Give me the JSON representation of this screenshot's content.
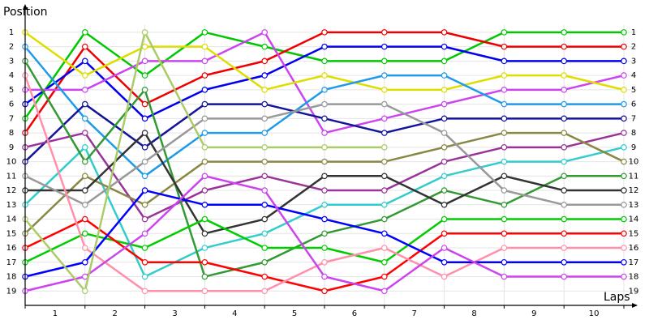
{
  "chart_data": {
    "type": "line",
    "y_label": "Position",
    "x_label": "Laps",
    "x": [
      0,
      1,
      2,
      3,
      4,
      5,
      6,
      7,
      8,
      9,
      10
    ],
    "xlim": [
      0,
      10
    ],
    "xticks": [
      {
        "value": 0.5,
        "label": "1"
      },
      {
        "value": 1.5,
        "label": "2"
      },
      {
        "value": 2.5,
        "label": "3"
      },
      {
        "value": 3.5,
        "label": "4"
      },
      {
        "value": 4.5,
        "label": "5"
      },
      {
        "value": 5.5,
        "label": "6"
      },
      {
        "value": 6.5,
        "label": "7"
      },
      {
        "value": 7.5,
        "label": "8"
      },
      {
        "value": 8.5,
        "label": "9"
      },
      {
        "value": 9.5,
        "label": "10"
      }
    ],
    "ylim": [
      20,
      0.5
    ],
    "yticks": [
      1,
      2,
      3,
      4,
      5,
      6,
      7,
      8,
      9,
      10,
      11,
      12,
      13,
      14,
      15,
      16,
      17,
      18,
      19
    ],
    "grid": true,
    "series": [
      {
        "color": "#00c800",
        "values": [
          7,
          1,
          4,
          1,
          2,
          3,
          3,
          3,
          1,
          1,
          1
        ]
      },
      {
        "color": "#ee0000",
        "values": [
          8,
          2,
          6,
          4,
          3,
          1,
          1,
          1,
          2,
          2,
          2
        ]
      },
      {
        "color": "#0000ee",
        "values": [
          6,
          3,
          7,
          5,
          4,
          2,
          2,
          2,
          3,
          3,
          3
        ]
      },
      {
        "color": "#cc44ee",
        "values": [
          5,
          5,
          3,
          3,
          1,
          8,
          7,
          6,
          5,
          5,
          4
        ]
      },
      {
        "color": "#dddd00",
        "values": [
          1,
          4,
          2,
          2,
          5,
          4,
          5,
          5,
          4,
          4,
          5
        ]
      },
      {
        "color": "#1e9be8",
        "values": [
          2,
          7,
          11,
          8,
          8,
          5,
          4,
          4,
          6,
          6,
          6
        ]
      },
      {
        "color": "#14149a",
        "values": [
          10,
          6,
          9,
          6,
          6,
          7,
          8,
          7,
          7,
          7,
          7
        ]
      },
      {
        "color": "#993399",
        "values": [
          9,
          8,
          14,
          12,
          11,
          12,
          12,
          10,
          9,
          9,
          8
        ]
      },
      {
        "color": "#33cccc",
        "values": [
          13,
          9,
          18,
          16,
          15,
          13,
          13,
          11,
          10,
          10,
          9
        ]
      },
      {
        "color": "#888844",
        "values": [
          15,
          11,
          13,
          10,
          10,
          10,
          10,
          9,
          8,
          8,
          10
        ]
      },
      {
        "color": "#339933",
        "values": [
          3,
          10,
          5,
          18,
          17,
          15,
          14,
          12,
          13,
          11,
          11
        ]
      },
      {
        "color": "#333333",
        "values": [
          12,
          12,
          8,
          15,
          14,
          11,
          11,
          13,
          11,
          12,
          12
        ]
      },
      {
        "color": "#999999",
        "values": [
          11,
          13,
          10,
          7,
          7,
          6,
          6,
          8,
          12,
          13,
          13
        ]
      },
      {
        "color": "#00cc00",
        "values": [
          17,
          15,
          16,
          14,
          16,
          16,
          17,
          14,
          14,
          14,
          14
        ]
      },
      {
        "color": "#ff0000",
        "values": [
          16,
          14,
          17,
          17,
          18,
          19,
          18,
          15,
          15,
          15,
          15
        ]
      },
      {
        "color": "#ff8fab",
        "values": [
          4,
          16,
          19,
          19,
          19,
          17,
          16,
          18,
          16,
          16,
          16
        ]
      },
      {
        "color": "#0000ff",
        "values": [
          18,
          17,
          12,
          13,
          13,
          14,
          15,
          17,
          17,
          17,
          17
        ]
      },
      {
        "color": "#cc44ee",
        "values": [
          19,
          18,
          15,
          11,
          12,
          18,
          19,
          16,
          18,
          18,
          18
        ]
      },
      {
        "color": "#aacc66",
        "values": [
          14,
          19,
          1,
          9,
          9,
          9,
          9,
          null,
          null,
          null,
          null
        ]
      }
    ]
  }
}
